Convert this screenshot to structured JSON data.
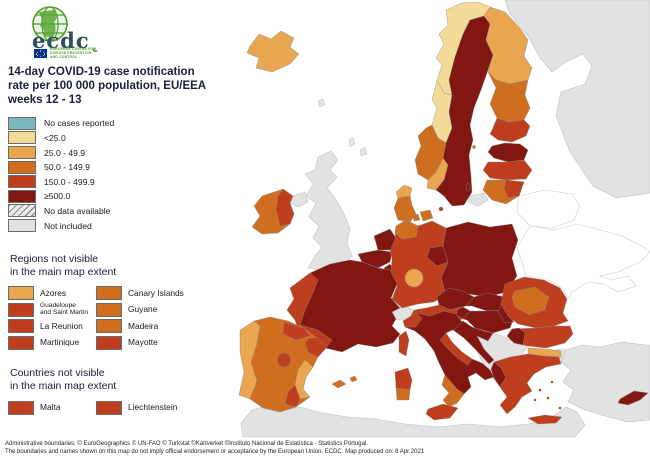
{
  "header": {
    "logo": {
      "wordmark": "ecdc",
      "org_lines": [
        "EUROPEAN CENTRE FOR",
        "DISEASE PREVENTION",
        "AND CONTROL"
      ]
    },
    "title_lines": [
      "14-day COVID-19 case notification",
      "rate per 100 000 population, EU/EEA",
      "weeks 12 - 13"
    ]
  },
  "legend": {
    "classes": [
      {
        "key": "no_cases",
        "label": "No cases reported",
        "color": "#79b6be"
      },
      {
        "key": "lt25",
        "label": "<25.0",
        "color": "#f4dc98"
      },
      {
        "key": "c25_49",
        "label": "25.0 - 49.9",
        "color": "#e9a550"
      },
      {
        "key": "c50_149",
        "label": "50.0 - 149.9",
        "color": "#d06e20"
      },
      {
        "key": "c150_499",
        "label": "150.0 - 499.9",
        "color": "#be3e1d"
      },
      {
        "key": "gte500",
        "label": "≥500.0",
        "color": "#811710"
      },
      {
        "key": "no_data",
        "label": "No data available",
        "color": "hatch"
      },
      {
        "key": "not_included",
        "label": "Not included",
        "color": "#e2e2e2"
      },
      {
        "key": "neighbor",
        "label": "",
        "color": "#ffffff"
      }
    ],
    "regions_not_visible": {
      "title_lines": [
        "Regions not visible",
        "in the main map extent"
      ],
      "items": [
        {
          "label_lines": [
            "Azores"
          ],
          "class": "c25_49"
        },
        {
          "label_lines": [
            "Canary Islands"
          ],
          "class": "c50_149"
        },
        {
          "label_lines": [
            "Guadeloupe",
            "and Saint Martin"
          ],
          "class": "c150_499",
          "small": true
        },
        {
          "label_lines": [
            "Guyane"
          ],
          "class": "c50_149"
        },
        {
          "label_lines": [
            "La Reunion"
          ],
          "class": "c150_499"
        },
        {
          "label_lines": [
            "Madeira"
          ],
          "class": "c50_149"
        },
        {
          "label_lines": [
            "Martinique"
          ],
          "class": "c150_499"
        },
        {
          "label_lines": [
            "Mayotte"
          ],
          "class": "c150_499"
        }
      ]
    },
    "countries_not_visible": {
      "title_lines": [
        "Countries not visible",
        "in the main map extent"
      ],
      "items": [
        {
          "label_lines": [
            "Malta"
          ],
          "class": "c150_499"
        },
        {
          "label_lines": [
            "Liechtenstein"
          ],
          "class": "c150_499"
        }
      ]
    }
  },
  "footer": {
    "line1": "Administrative boundaries: © EuroGeographics © UN-FAO © Turkstat ©Kartverket ©Instituto Nacional de Estatística - Statistics Portugal.",
    "line2": "The boundaries and names shown on this map do not imply official endorsement or acceptance by the European Union. ECDC. Map produced on: 8 Apr 2021"
  },
  "map": {
    "region_fills": {
      "russia": "not_included",
      "belarus": "neighbor",
      "ukraine": "neighbor",
      "turkey": "not_included",
      "turkey-thrace": "not_included",
      "north-africa": "not_included",
      "balkans": "not_included",
      "uk": "not_included",
      "northern-ireland": "not_included",
      "switzerland": "not_included",
      "kaliningrad": "not_included",
      "faroe": "not_included",
      "shetland": "not_included",
      "shetland2": "not_included",
      "iceland": "c25_49",
      "norway-north": "lt25",
      "norway-coast": "lt25",
      "norway-southwest": "c50_149",
      "norway-south-tip": "c25_49",
      "sweden": "gte500",
      "gotland": "gte500",
      "finland-north": "c25_49",
      "finland-mid": "c50_149",
      "finland-south": "c150_499",
      "aland": "c50_149",
      "estonia": "gte500",
      "latvia": "c150_499",
      "lithuania": "c50_149",
      "lithuania-east": "c150_499",
      "denmark-north": "c25_49",
      "denmark-jutland": "c50_149",
      "denmark-zealand": "c50_149",
      "denmark-funen": "c50_149",
      "bornholm": "c150_499",
      "ireland": "c50_149",
      "ireland-east": "c150_499",
      "netherlands": "gte500",
      "belgium": "gte500",
      "luxembourg": "gte500",
      "germany": "c150_499",
      "germany-north": "c50_149",
      "germany-center": "c25_49",
      "germany-east": "gte500",
      "poland": "gte500",
      "czechia": "gte500",
      "slovakia": "gte500",
      "austria": "c150_499",
      "austria-east": "gte500",
      "france": "gte500",
      "france-west": "c150_499",
      "france-southwest": "c150_499",
      "portugal": "c25_49",
      "spain": "c50_149",
      "spain-north": "c150_499",
      "spain-catalonia": "c150_499",
      "spain-madrid": "c150_499",
      "spain-valencia": "c25_49",
      "spain-murcia": "c150_499",
      "balearic-1": "c50_149",
      "balearic-2": "c50_149",
      "corsica": "c150_499",
      "sardinia-north": "c150_499",
      "sardinia-south": "c50_149",
      "italy": "gte500",
      "italy-liguria": "c150_499",
      "italy-adriatic": "c150_499",
      "italy-calabria": "c50_149",
      "sicily": "c150_499",
      "slovenia-croatia": "gte500",
      "hungary": "gte500",
      "romania": "c150_499",
      "romania-center": "c50_149",
      "romania-southwest": "gte500",
      "bulgaria": "c150_499",
      "bulgaria-west": "gte500",
      "greece": "c150_499",
      "greece-northeast": "c25_49",
      "greece-west": "gte500",
      "crete": "c150_499",
      "aegean-island": "c150_499",
      "cyprus": "gte500"
    }
  }
}
